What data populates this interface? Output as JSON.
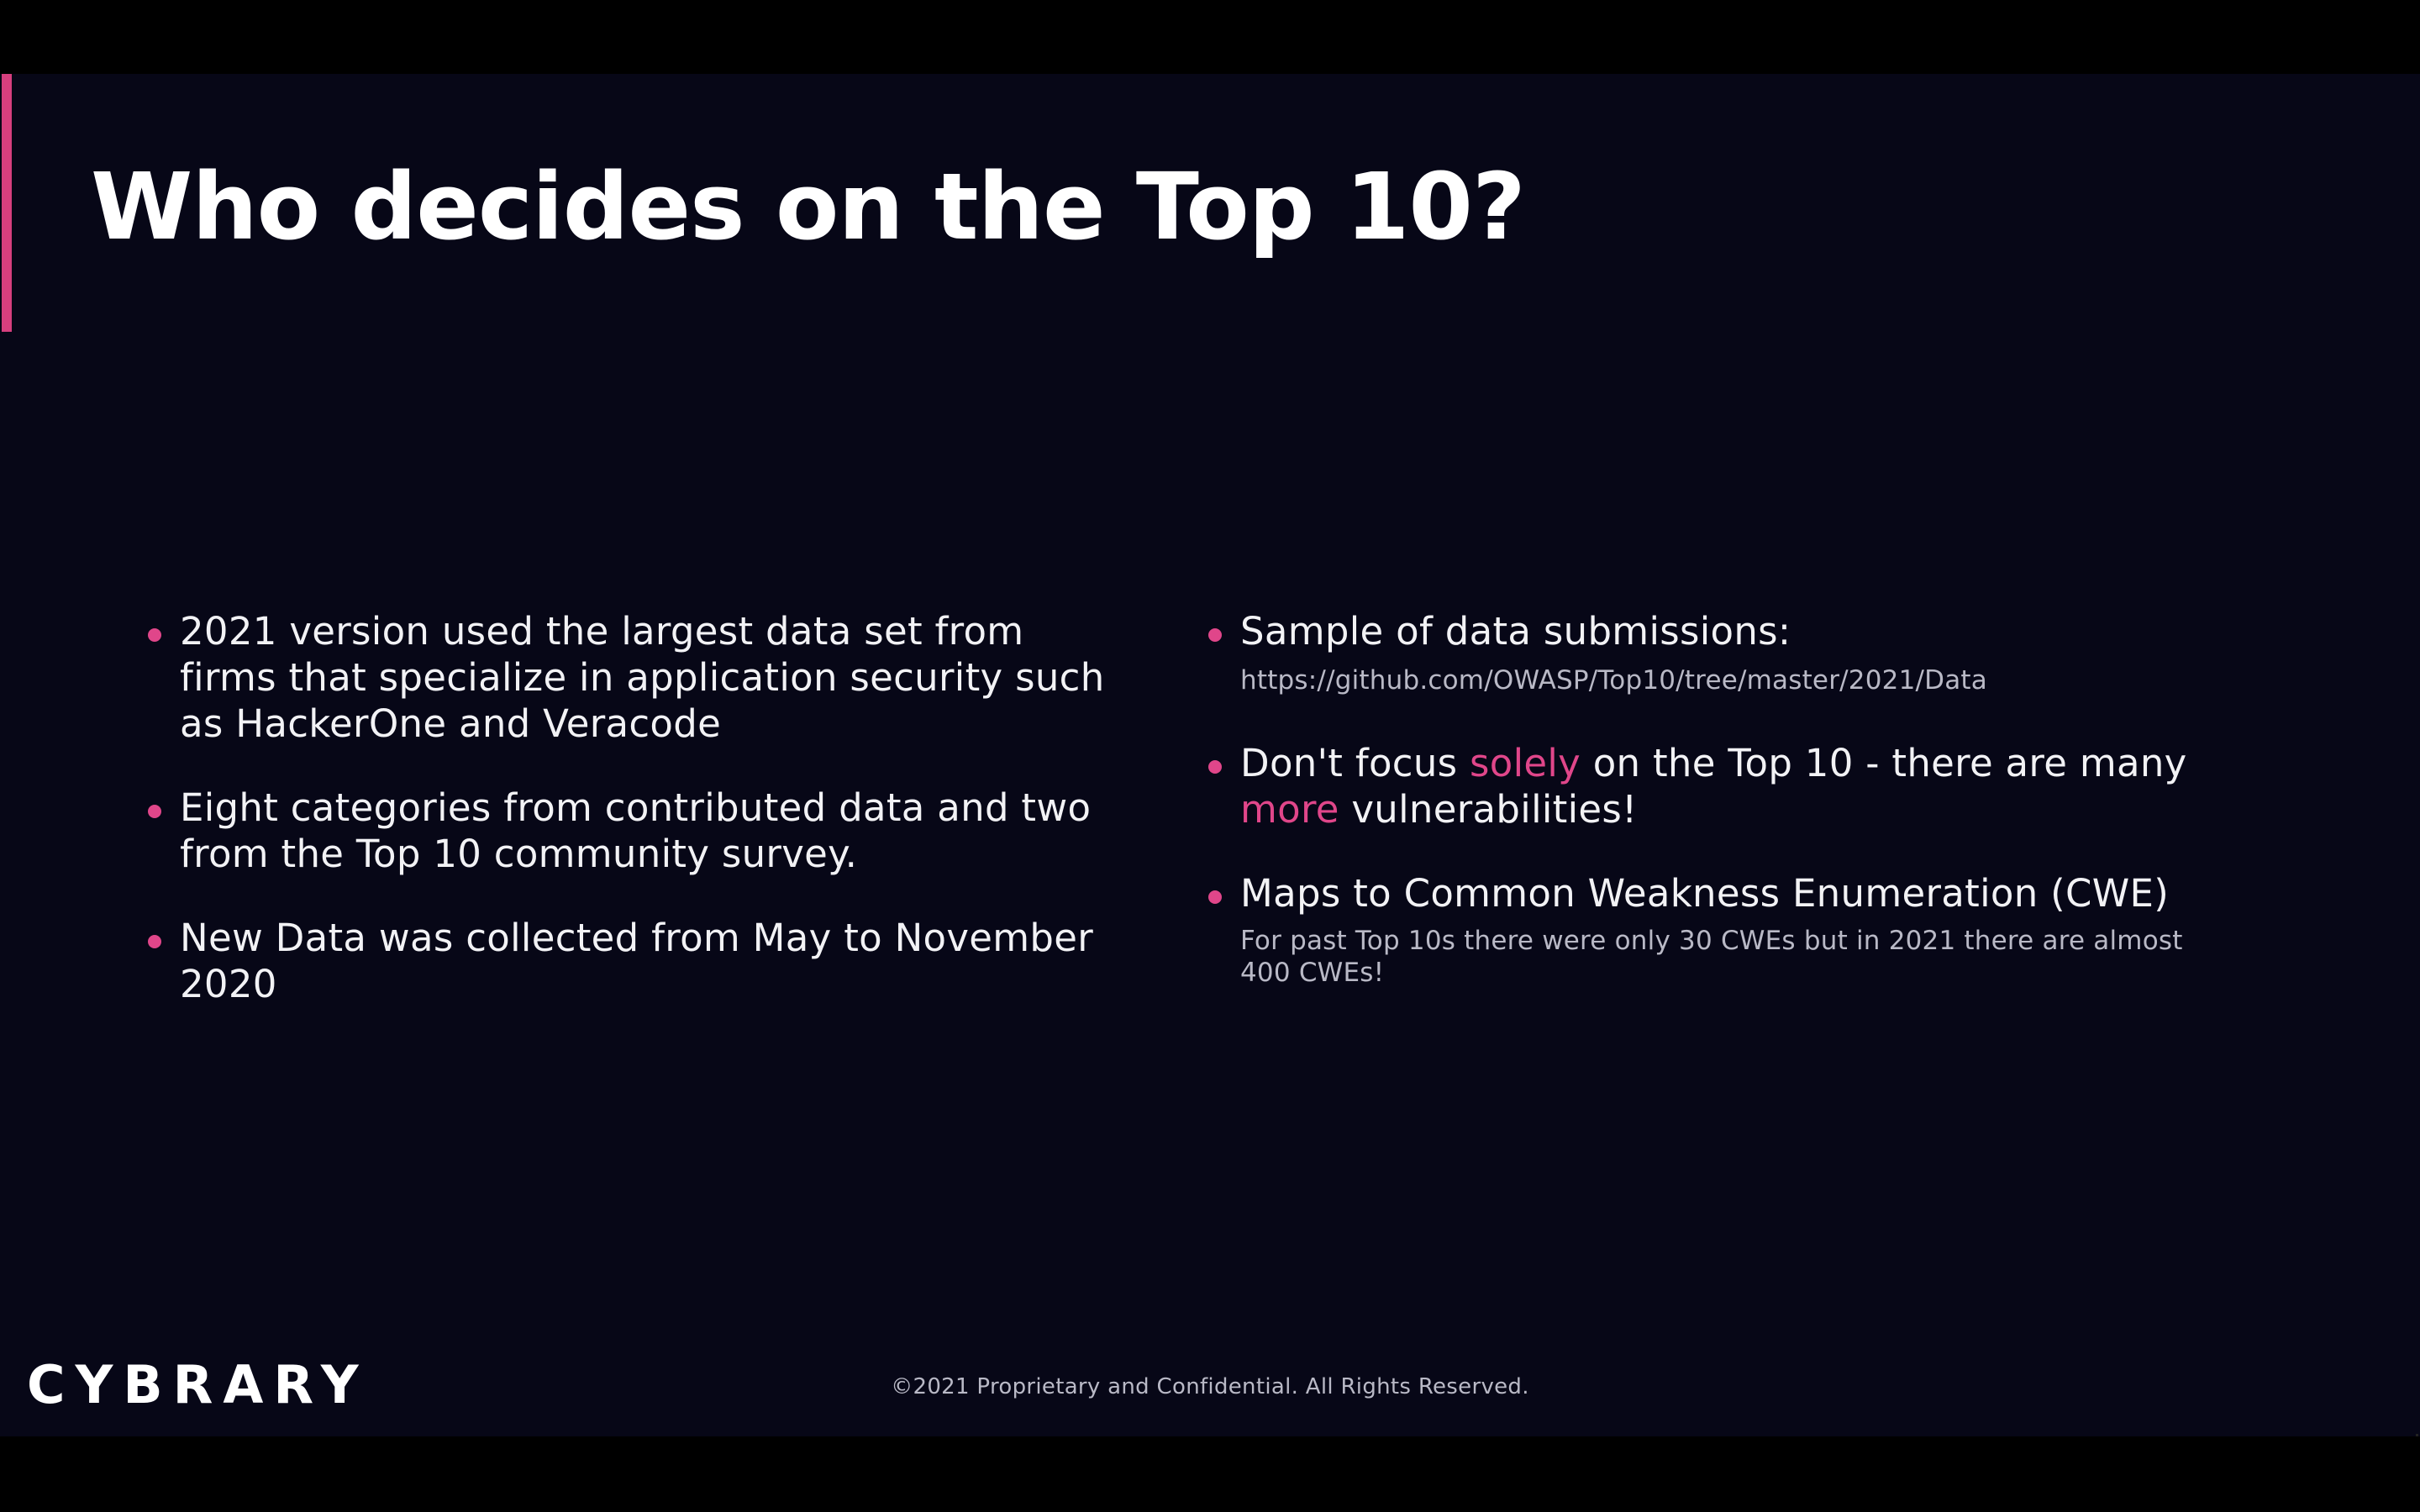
{
  "slide": {
    "title": "Who decides on the Top 10?",
    "colors": {
      "background": "#070717",
      "accent": "#e0468a",
      "text": "#f2f2f5",
      "muted": "#b9b9c6"
    },
    "left_bullets": [
      {
        "text": "2021 version used the largest data set from firms that specialize in application security such as HackerOne and Veracode"
      },
      {
        "text": "Eight categories from contributed data and two from the Top 10 community survey."
      },
      {
        "text": "New Data was collected from May to November 2020"
      }
    ],
    "right_bullets": [
      {
        "text": "Sample of data submissions:",
        "sub": "https://github.com/OWASP/Top10/tree/master/2021/Data"
      },
      {
        "parts": [
          "Don't focus ",
          "solely",
          " on the Top 10 - there are many ",
          "more",
          " vulnerabilities!"
        ]
      },
      {
        "text": "Maps to Common Weakness Enumeration (CWE)",
        "sub": "For past Top 10s there were only 30 CWEs but in 2021 there are almost 400 CWEs!"
      }
    ],
    "logo": "CYBRARY",
    "footer": "©2021 Proprietary and Confidential. All Rights Reserved."
  }
}
